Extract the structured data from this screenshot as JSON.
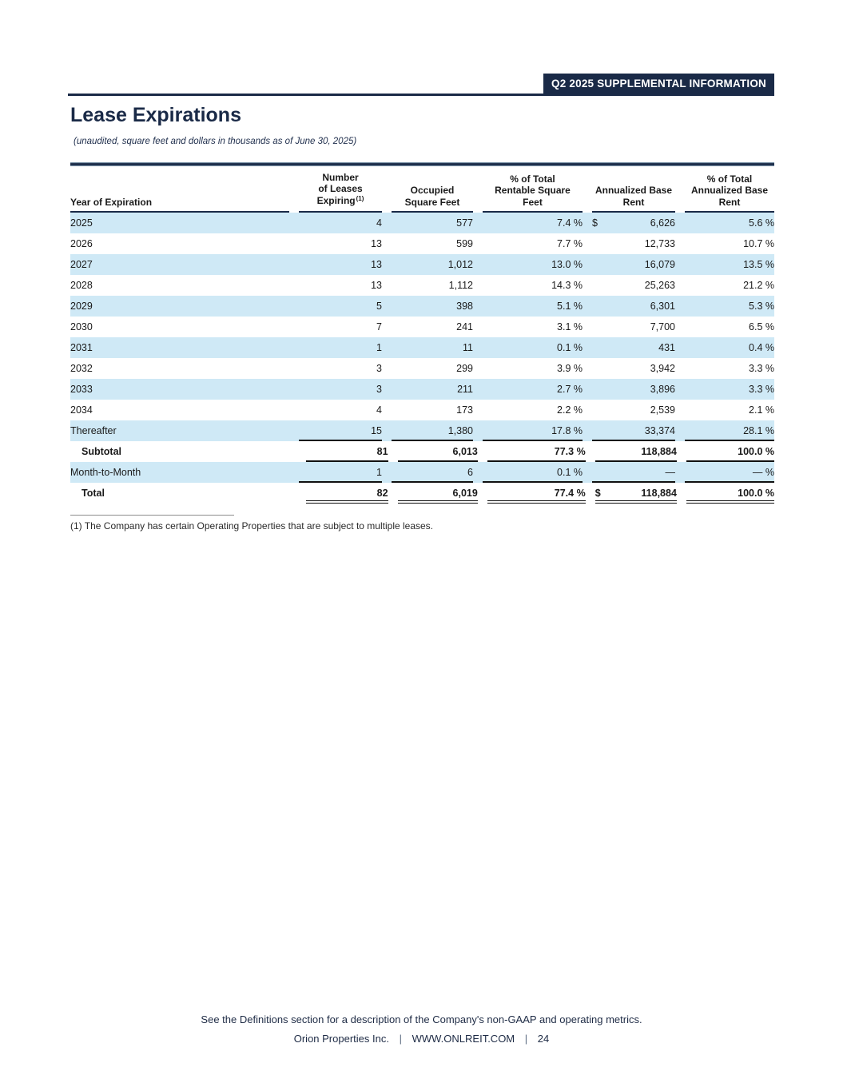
{
  "banner": {
    "label": "Q2 2025 SUPPLEMENTAL INFORMATION"
  },
  "title": "Lease Expirations",
  "subtitle": "(unaudited, square feet and dollars in thousands as of June 30, 2025)",
  "colors": {
    "navy": "#1a2a47",
    "stripe": "#cfe9f6",
    "banner_text": "#ffffff"
  },
  "table": {
    "headers": [
      {
        "lines": [
          "Year of Expiration"
        ]
      },
      {
        "lines": [
          "Number",
          "of Leases",
          "Expiring"
        ],
        "sup": "(1)"
      },
      {
        "lines": [
          "Occupied",
          "Square Feet"
        ]
      },
      {
        "lines": [
          "% of Total",
          "Rentable Square",
          "Feet"
        ]
      },
      {
        "lines": [
          "Annualized Base",
          "Rent"
        ]
      },
      {
        "lines": [
          "% of Total",
          "Annualized Base",
          "Rent"
        ]
      }
    ],
    "rows": [
      {
        "label": "2025",
        "leases": "4",
        "sqft": "577",
        "pct_sqft": "7.4 %",
        "dollar": "$",
        "rent": "6,626",
        "pct_rent": "5.6 %"
      },
      {
        "label": "2026",
        "leases": "13",
        "sqft": "599",
        "pct_sqft": "7.7 %",
        "dollar": "",
        "rent": "12,733",
        "pct_rent": "10.7 %"
      },
      {
        "label": "2027",
        "leases": "13",
        "sqft": "1,012",
        "pct_sqft": "13.0 %",
        "dollar": "",
        "rent": "16,079",
        "pct_rent": "13.5 %"
      },
      {
        "label": "2028",
        "leases": "13",
        "sqft": "1,112",
        "pct_sqft": "14.3 %",
        "dollar": "",
        "rent": "25,263",
        "pct_rent": "21.2 %"
      },
      {
        "label": "2029",
        "leases": "5",
        "sqft": "398",
        "pct_sqft": "5.1 %",
        "dollar": "",
        "rent": "6,301",
        "pct_rent": "5.3 %"
      },
      {
        "label": "2030",
        "leases": "7",
        "sqft": "241",
        "pct_sqft": "3.1 %",
        "dollar": "",
        "rent": "7,700",
        "pct_rent": "6.5 %"
      },
      {
        "label": "2031",
        "leases": "1",
        "sqft": "11",
        "pct_sqft": "0.1 %",
        "dollar": "",
        "rent": "431",
        "pct_rent": "0.4 %"
      },
      {
        "label": "2032",
        "leases": "3",
        "sqft": "299",
        "pct_sqft": "3.9 %",
        "dollar": "",
        "rent": "3,942",
        "pct_rent": "3.3 %"
      },
      {
        "label": "2033",
        "leases": "3",
        "sqft": "211",
        "pct_sqft": "2.7 %",
        "dollar": "",
        "rent": "3,896",
        "pct_rent": "3.3 %"
      },
      {
        "label": "2034",
        "leases": "4",
        "sqft": "173",
        "pct_sqft": "2.2 %",
        "dollar": "",
        "rent": "2,539",
        "pct_rent": "2.1 %"
      },
      {
        "label": "Thereafter",
        "leases": "15",
        "sqft": "1,380",
        "pct_sqft": "17.8 %",
        "dollar": "",
        "rent": "33,374",
        "pct_rent": "28.1 %",
        "rule_below": "single"
      },
      {
        "label": "Subtotal",
        "leases": "81",
        "sqft": "6,013",
        "pct_sqft": "77.3 %",
        "dollar": "",
        "rent": "118,884",
        "pct_rent": "100.0 %",
        "bold": true,
        "indent": true,
        "rule_below": "single"
      },
      {
        "label": "Month-to-Month",
        "leases": "1",
        "sqft": "6",
        "pct_sqft": "0.1 %",
        "dollar": "",
        "rent": "—",
        "pct_rent": "— %",
        "rule_below": "single"
      },
      {
        "label": "Total",
        "leases": "82",
        "sqft": "6,019",
        "pct_sqft": "77.4 %",
        "dollar": "$",
        "rent": "118,884",
        "pct_rent": "100.0 %",
        "bold": true,
        "indent": true,
        "rule_below": "double"
      }
    ]
  },
  "footnote": "(1) The Company has certain Operating Properties that are subject to multiple leases.",
  "footer": {
    "definitions_note": "See the Definitions section for a description of the Company's non-GAAP and operating metrics.",
    "company": "Orion Properties Inc.",
    "separator": "|",
    "website": "WWW.ONLREIT.COM",
    "page_number": "24"
  }
}
